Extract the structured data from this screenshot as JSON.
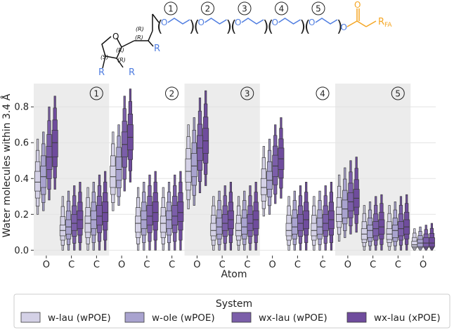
{
  "molecule": {
    "unit_numbers": [
      "1",
      "2",
      "3",
      "4",
      "5"
    ],
    "stereo_labels": [
      "(R)",
      "(R)",
      "(R)",
      "(S)",
      "(R)"
    ],
    "ring_oxygen": "O",
    "r_group": "R",
    "ester_oxygen": "O",
    "ester_fa": "R",
    "ester_fa_sub": "FA"
  },
  "chart_data": {
    "type": "boxen",
    "ylabel": "Water molecules within 3.4 Å",
    "xlabel": "Atom",
    "categories": [
      "O",
      "C",
      "C",
      "O",
      "C",
      "C",
      "O",
      "C",
      "C",
      "O",
      "C",
      "C",
      "O",
      "C",
      "C",
      "O"
    ],
    "ylim": [
      -0.03,
      0.93
    ],
    "yticks": [
      "0.0",
      "0.2",
      "0.4",
      "0.6",
      "0.8"
    ],
    "ytick_values": [
      0.0,
      0.2,
      0.4,
      0.6,
      0.8
    ],
    "shaded_groups": [
      {
        "label": "1",
        "from": 0,
        "to": 2,
        "shaded": true
      },
      {
        "label": "2",
        "from": 3,
        "to": 5,
        "shaded": false
      },
      {
        "label": "3",
        "from": 6,
        "to": 8,
        "shaded": true
      },
      {
        "label": "4",
        "from": 9,
        "to": 11,
        "shaded": false
      },
      {
        "label": "5",
        "from": 12,
        "to": 14,
        "shaded": true
      }
    ],
    "legend": {
      "title": "System",
      "placement": "bottom-center"
    },
    "series": [
      {
        "name": "w-lau (wPOE)",
        "color": "#d4d1e6",
        "medians": [
          0.38,
          0.11,
          0.15,
          0.41,
          0.15,
          0.15,
          0.44,
          0.11,
          0.11,
          0.35,
          0.11,
          0.11,
          0.2,
          0.09,
          0.09,
          0.03
        ],
        "q1": [
          0.33,
          0.08,
          0.1,
          0.35,
          0.1,
          0.1,
          0.38,
          0.08,
          0.08,
          0.31,
          0.08,
          0.08,
          0.16,
          0.06,
          0.06,
          0.02
        ],
        "q3": [
          0.44,
          0.14,
          0.19,
          0.47,
          0.19,
          0.19,
          0.51,
          0.15,
          0.15,
          0.4,
          0.15,
          0.15,
          0.24,
          0.12,
          0.12,
          0.05
        ],
        "low": [
          0.2,
          0.0,
          0.0,
          0.22,
          0.0,
          0.0,
          0.23,
          0.0,
          0.0,
          0.19,
          0.0,
          0.0,
          0.05,
          0.0,
          0.0,
          0.0
        ],
        "high": [
          0.62,
          0.3,
          0.35,
          0.66,
          0.35,
          0.35,
          0.7,
          0.3,
          0.3,
          0.58,
          0.3,
          0.3,
          0.42,
          0.25,
          0.25,
          0.12
        ]
      },
      {
        "name": "w-ole (wPOE)",
        "color": "#a9a3cf",
        "medians": [
          0.41,
          0.13,
          0.17,
          0.45,
          0.17,
          0.17,
          0.47,
          0.13,
          0.13,
          0.39,
          0.13,
          0.13,
          0.23,
          0.11,
          0.11,
          0.04
        ],
        "q1": [
          0.35,
          0.09,
          0.12,
          0.39,
          0.12,
          0.12,
          0.41,
          0.09,
          0.09,
          0.34,
          0.09,
          0.09,
          0.18,
          0.07,
          0.07,
          0.02
        ],
        "q3": [
          0.47,
          0.17,
          0.22,
          0.52,
          0.22,
          0.22,
          0.54,
          0.18,
          0.18,
          0.44,
          0.18,
          0.18,
          0.28,
          0.14,
          0.14,
          0.06
        ],
        "low": [
          0.22,
          0.0,
          0.0,
          0.25,
          0.0,
          0.0,
          0.25,
          0.0,
          0.0,
          0.2,
          0.0,
          0.0,
          0.07,
          0.0,
          0.0,
          0.0
        ],
        "high": [
          0.66,
          0.33,
          0.38,
          0.7,
          0.38,
          0.38,
          0.74,
          0.33,
          0.33,
          0.62,
          0.33,
          0.33,
          0.46,
          0.27,
          0.27,
          0.13
        ]
      },
      {
        "name": "wx-lau (wPOE)",
        "color": "#7b5ea9",
        "medians": [
          0.52,
          0.15,
          0.19,
          0.59,
          0.19,
          0.19,
          0.57,
          0.15,
          0.15,
          0.47,
          0.15,
          0.15,
          0.27,
          0.12,
          0.12,
          0.04
        ],
        "q1": [
          0.45,
          0.11,
          0.14,
          0.52,
          0.14,
          0.14,
          0.5,
          0.11,
          0.11,
          0.41,
          0.11,
          0.11,
          0.22,
          0.08,
          0.08,
          0.02
        ],
        "q3": [
          0.58,
          0.2,
          0.25,
          0.66,
          0.25,
          0.25,
          0.64,
          0.2,
          0.2,
          0.53,
          0.2,
          0.2,
          0.32,
          0.16,
          0.16,
          0.07
        ],
        "low": [
          0.28,
          0.0,
          0.0,
          0.33,
          0.0,
          0.0,
          0.32,
          0.0,
          0.0,
          0.26,
          0.0,
          0.0,
          0.09,
          0.0,
          0.0,
          0.0
        ],
        "high": [
          0.8,
          0.36,
          0.42,
          0.86,
          0.42,
          0.42,
          0.85,
          0.36,
          0.36,
          0.7,
          0.36,
          0.36,
          0.5,
          0.3,
          0.3,
          0.14
        ]
      },
      {
        "name": "wx-lau (xPOE)",
        "color": "#6f4c9d",
        "medians": [
          0.6,
          0.17,
          0.21,
          0.63,
          0.21,
          0.21,
          0.61,
          0.17,
          0.17,
          0.51,
          0.17,
          0.17,
          0.29,
          0.13,
          0.13,
          0.04
        ],
        "q1": [
          0.52,
          0.12,
          0.16,
          0.56,
          0.16,
          0.16,
          0.54,
          0.12,
          0.12,
          0.45,
          0.12,
          0.12,
          0.24,
          0.09,
          0.09,
          0.02
        ],
        "q3": [
          0.67,
          0.22,
          0.27,
          0.7,
          0.27,
          0.27,
          0.68,
          0.22,
          0.22,
          0.57,
          0.22,
          0.22,
          0.34,
          0.17,
          0.17,
          0.07
        ],
        "low": [
          0.34,
          0.0,
          0.0,
          0.38,
          0.0,
          0.0,
          0.36,
          0.0,
          0.0,
          0.29,
          0.0,
          0.0,
          0.1,
          0.0,
          0.0,
          0.0
        ],
        "high": [
          0.86,
          0.38,
          0.44,
          0.9,
          0.44,
          0.44,
          0.89,
          0.38,
          0.38,
          0.74,
          0.38,
          0.38,
          0.52,
          0.31,
          0.31,
          0.15
        ]
      }
    ]
  }
}
